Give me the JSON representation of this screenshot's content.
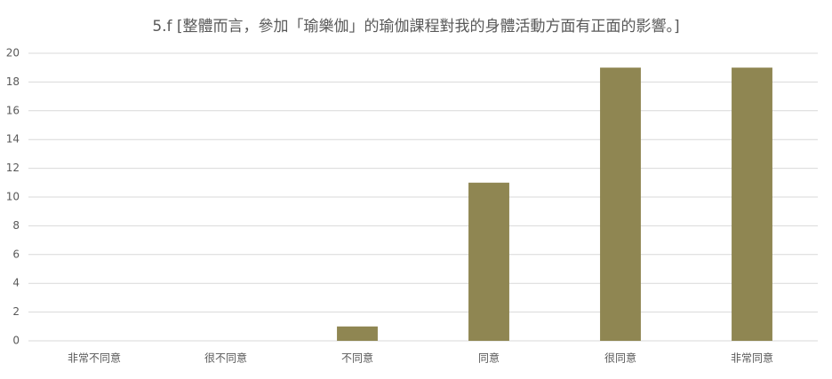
{
  "chart_data": {
    "type": "bar",
    "title": "5.f [整體而言，參加「瑜樂伽」的瑜伽課程對我的身體活動方面有正面的影響。]",
    "categories": [
      "非常不同意",
      "很不同意",
      "不同意",
      "同意",
      "很同意",
      "非常同意"
    ],
    "values": [
      0,
      0,
      1,
      11,
      19,
      19
    ],
    "color": "#8f8652",
    "ylim": [
      0,
      20
    ],
    "yticks": [
      0,
      2,
      4,
      6,
      8,
      10,
      12,
      14,
      16,
      18,
      20
    ],
    "grid": true
  }
}
